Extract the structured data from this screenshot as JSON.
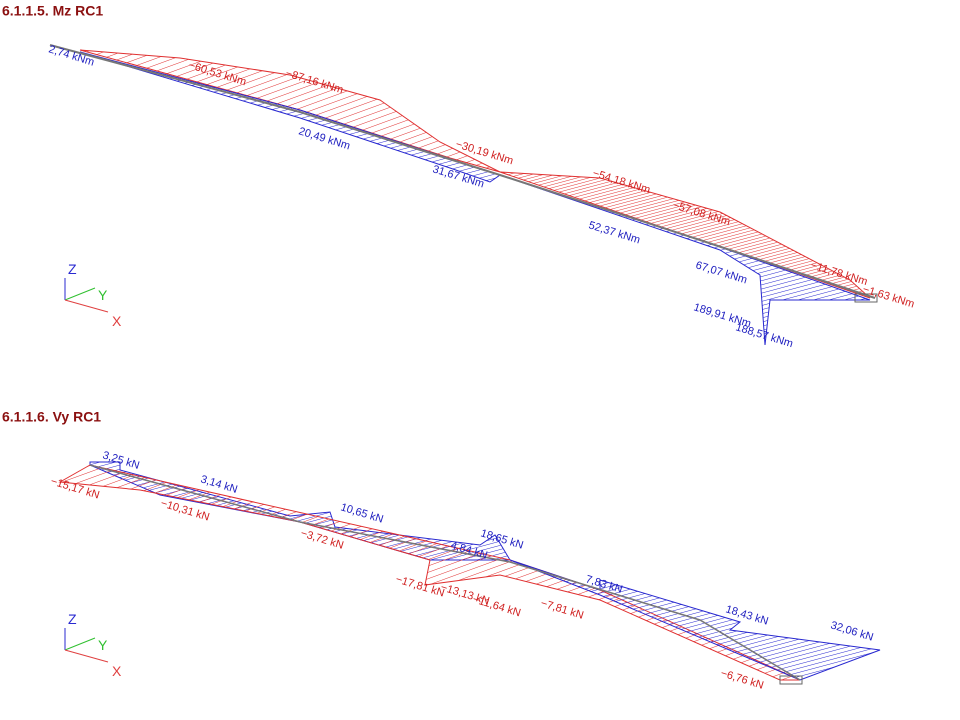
{
  "sections": [
    {
      "title": "6.1.1.5. Mz RC1",
      "axes": {
        "z": "Z",
        "y": "Y",
        "x": "X"
      },
      "labels": [
        {
          "text": "2,74 kNm",
          "color": "#2020c0"
        },
        {
          "text": "−60,53 kNm",
          "color": "#d02020"
        },
        {
          "text": "−87,16 kNm",
          "color": "#d02020"
        },
        {
          "text": "20,49 kNm",
          "color": "#2020c0"
        },
        {
          "text": "−30,19 kNm",
          "color": "#d02020"
        },
        {
          "text": "31,67 kNm",
          "color": "#2020c0"
        },
        {
          "text": "−54,18 kNm",
          "color": "#d02020"
        },
        {
          "text": "−57,08 kNm",
          "color": "#d02020"
        },
        {
          "text": "52,37 kNm",
          "color": "#2020c0"
        },
        {
          "text": "67,07 kNm",
          "color": "#2020c0"
        },
        {
          "text": "−11,78 kNm",
          "color": "#d02020"
        },
        {
          "text": "−1,63 kNm",
          "color": "#d02020"
        },
        {
          "text": "189,91 kNm",
          "color": "#2020c0"
        },
        {
          "text": "188,57 kNm",
          "color": "#2020c0"
        }
      ]
    },
    {
      "title": "6.1.1.6. Vy RC1",
      "axes": {
        "z": "Z",
        "y": "Y",
        "x": "X"
      },
      "labels": [
        {
          "text": "3,25 kN",
          "color": "#2020c0"
        },
        {
          "text": "−15,17 kN",
          "color": "#d02020"
        },
        {
          "text": "3,14 kN",
          "color": "#2020c0"
        },
        {
          "text": "−10,31 kN",
          "color": "#d02020"
        },
        {
          "text": "10,65 kN",
          "color": "#2020c0"
        },
        {
          "text": "−3,72 kN",
          "color": "#d02020"
        },
        {
          "text": "18,65 kN",
          "color": "#2020c0"
        },
        {
          "text": "4,84 kN",
          "color": "#2020c0"
        },
        {
          "text": "−17,81 kN",
          "color": "#d02020"
        },
        {
          "text": "−13,13 kN",
          "color": "#d02020"
        },
        {
          "text": "−11,64 kN",
          "color": "#d02020"
        },
        {
          "text": "7,83 kN",
          "color": "#2020c0"
        },
        {
          "text": "−7,81 kN",
          "color": "#d02020"
        },
        {
          "text": "18,43 kN",
          "color": "#2020c0"
        },
        {
          "text": "32,06 kN",
          "color": "#2020c0"
        },
        {
          "text": "−6,76 kN",
          "color": "#d02020"
        }
      ]
    }
  ]
}
